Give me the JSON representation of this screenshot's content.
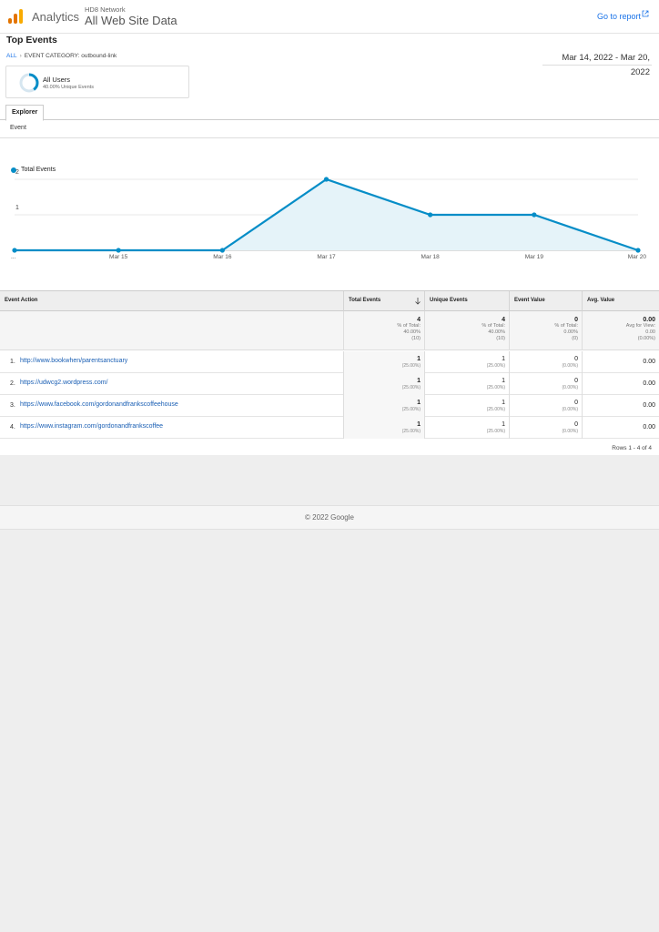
{
  "header": {
    "brand": "Analytics",
    "network": "HD8 Network",
    "property": "All Web Site Data",
    "go_to_report": "Go to report"
  },
  "page_title": "Top Events",
  "breadcrumb": {
    "all": "ALL",
    "category": "EVENT CATEGORY: outbound-link"
  },
  "date_range": "Mar 14, 2022 - Mar 20, 2022",
  "segment": {
    "name": "All Users",
    "sub": "40.00% Unique Events",
    "fraction": 0.4
  },
  "tabs": [
    "Explorer"
  ],
  "subtab": "Event",
  "colors": {
    "series": "#058dc7",
    "fill": "#e5f3f9",
    "link": "#1a73e8"
  },
  "chart_data": {
    "type": "area",
    "series": [
      {
        "name": "Total Events",
        "values": [
          0,
          0,
          0,
          2,
          1,
          1,
          0
        ]
      }
    ],
    "categories": [
      "...",
      "Mar 15",
      "Mar 16",
      "Mar 17",
      "Mar 18",
      "Mar 19",
      "Mar 20"
    ],
    "y_ticks": [
      "1",
      "2"
    ],
    "ylim": [
      0,
      2
    ],
    "grid": true,
    "legend": "top-left"
  },
  "table": {
    "headers": [
      "Event Action",
      "Total Events",
      "Unique Events",
      "Event Value",
      "Avg. Value"
    ],
    "totals": [
      {
        "value": "4",
        "lines": [
          "% of Total:",
          "40.00%",
          "(10)"
        ]
      },
      {
        "value": "4",
        "lines": [
          "% of Total:",
          "40.00%",
          "(10)"
        ]
      },
      {
        "value": "0",
        "lines": [
          "% of Total:",
          "0.00%",
          "(0)"
        ]
      },
      {
        "value": "0.00",
        "lines": [
          "Avg for View:",
          "0.00",
          "(0.00%)"
        ]
      }
    ],
    "rows": [
      {
        "num": "1.",
        "action": "http://www.bookwhen/parentsanctuary",
        "total": "1",
        "total_pct": "(25.00%)",
        "unique": "1",
        "unique_pct": "(25.00%)",
        "value": "0",
        "value_pct": "(0.00%)",
        "avg": "0.00"
      },
      {
        "num": "2.",
        "action": "https://udwcg2.wordpress.com/",
        "total": "1",
        "total_pct": "(25.00%)",
        "unique": "1",
        "unique_pct": "(25.00%)",
        "value": "0",
        "value_pct": "(0.00%)",
        "avg": "0.00"
      },
      {
        "num": "3.",
        "action": "https://www.facebook.com/gordonandfrankscoffeehouse",
        "total": "1",
        "total_pct": "(25.00%)",
        "unique": "1",
        "unique_pct": "(25.00%)",
        "value": "0",
        "value_pct": "(0.00%)",
        "avg": "0.00"
      },
      {
        "num": "4.",
        "action": "https://www.instagram.com/gordonandfrankscoffee",
        "total": "1",
        "total_pct": "(25.00%)",
        "unique": "1",
        "unique_pct": "(25.00%)",
        "value": "0",
        "value_pct": "(0.00%)",
        "avg": "0.00"
      }
    ],
    "rows_count": "Rows 1 - 4 of 4"
  },
  "footer": "© 2022 Google"
}
